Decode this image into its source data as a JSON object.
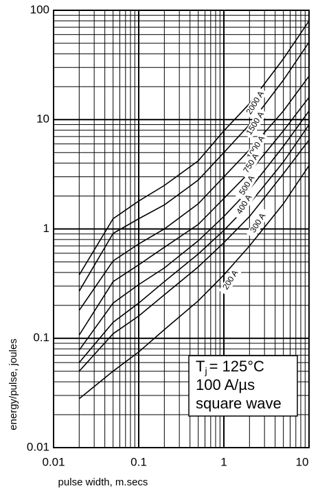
{
  "chart_data": {
    "type": "line",
    "x_label": "pulse width, m.secs",
    "y_label": "energy/pulse, joules",
    "x": [
      0.02,
      0.05,
      0.1,
      0.2,
      0.5,
      1,
      2,
      5,
      10
    ],
    "series": [
      {
        "name": "2000 A",
        "color": "#000000",
        "values": [
          0.38,
          1.24,
          1.8,
          2.5,
          4.2,
          7.9,
          14,
          36,
          80
        ]
      },
      {
        "name": "1500 A",
        "color": "#000000",
        "values": [
          0.27,
          0.91,
          1.24,
          1.66,
          2.8,
          5,
          9,
          23,
          51
        ]
      },
      {
        "name": "1000 A",
        "color": "#000000",
        "values": [
          0.18,
          0.51,
          0.73,
          1.0,
          1.7,
          3,
          5.3,
          12,
          25
        ]
      },
      {
        "name": "750 A",
        "color": "#000000",
        "values": [
          0.107,
          0.33,
          0.47,
          0.68,
          1.1,
          1.9,
          3.3,
          7.9,
          16
        ]
      },
      {
        "name": "500 A",
        "color": "#000000",
        "values": [
          0.078,
          0.21,
          0.31,
          0.44,
          0.78,
          1.3,
          2.3,
          5.7,
          12
        ]
      },
      {
        "name": "400 A",
        "color": "#000000",
        "values": [
          0.06,
          0.14,
          0.21,
          0.33,
          0.59,
          0.97,
          1.7,
          4.1,
          9
        ]
      },
      {
        "name": "300 A",
        "color": "#000000",
        "values": [
          0.05,
          0.11,
          0.16,
          0.25,
          0.45,
          0.75,
          1.3,
          3.2,
          6.5
        ]
      },
      {
        "name": "200 A",
        "color": "#000000",
        "values": [
          0.028,
          0.05,
          0.075,
          0.12,
          0.22,
          0.38,
          0.7,
          1.7,
          3.8
        ]
      }
    ],
    "xscale": "log",
    "yscale": "log",
    "xlim": [
      0.01,
      10
    ],
    "ylim": [
      0.01,
      100
    ],
    "xticks": [
      0.01,
      0.1,
      1,
      10
    ],
    "yticks": [
      0.01,
      0.1,
      1,
      10,
      100
    ],
    "grid": true,
    "annotation": {
      "symbol": "T",
      "subscript": "j",
      "rest": "= 125°C",
      "line2": "100 A/µs",
      "line3": "square wave"
    }
  }
}
